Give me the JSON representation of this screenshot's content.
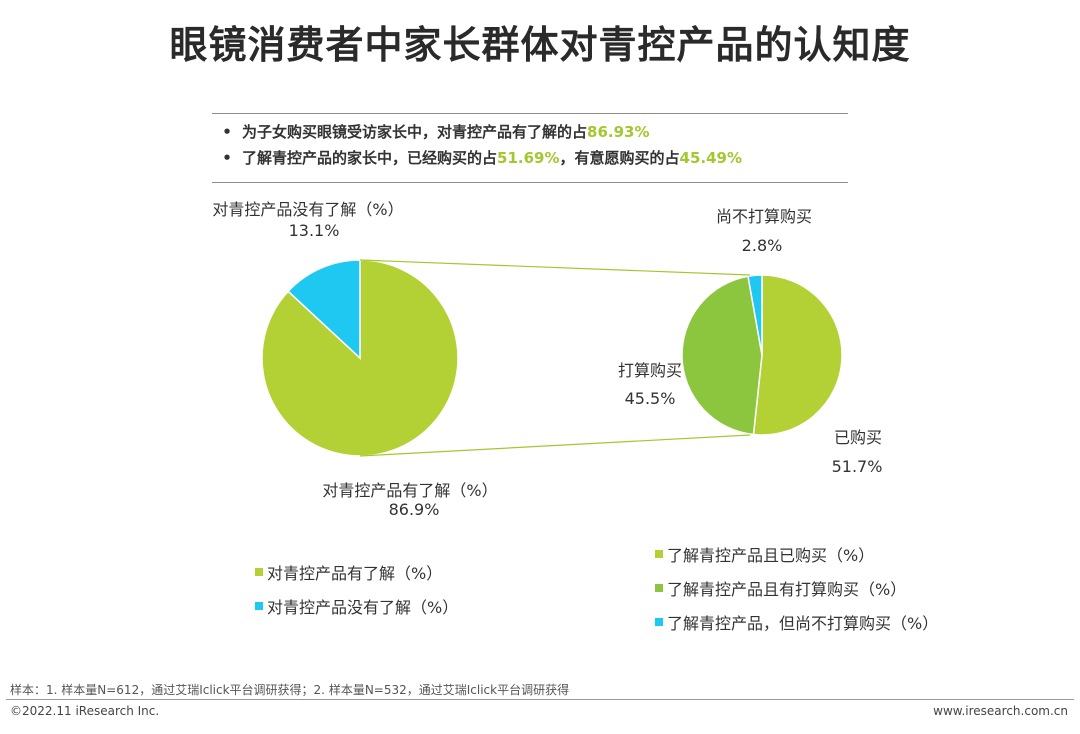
{
  "title": "眼镜消费者中家长群体对青控产品的认知度",
  "summary": {
    "line1": {
      "bullet": "•",
      "text": "为子女购买眼镜受访家长中，对青控产品有了解的占",
      "highlight": "86.93%"
    },
    "line2": {
      "bullet": "•",
      "text_a": "了解青控产品的家长中，已经购买的占",
      "highlight_a": "51.69%",
      "text_b": "，有意愿购买的占",
      "highlight_b": "45.49%"
    }
  },
  "colors": {
    "green": "#b3d135",
    "mid_green": "#8cc63f",
    "cyan": "#1ec8f0",
    "connector": "#a3c72e"
  },
  "chart_data": [
    {
      "type": "pie",
      "title": "",
      "slices": [
        {
          "name": "对青控产品有了解（%）",
          "value": 86.9,
          "label_name": "对青控产品有了解（%）",
          "label_value": "86.9%",
          "color": "#b3d135"
        },
        {
          "name": "对青控产品没有了解（%）",
          "value": 13.1,
          "label_name": "对青控产品没有了解（%）",
          "label_value": "13.1%",
          "color": "#1ec8f0"
        }
      ],
      "legend": [
        "对青控产品有了解（%）",
        "对青控产品没有了解（%）"
      ],
      "legend_position": "bottom-left"
    },
    {
      "type": "pie",
      "title": "",
      "slices": [
        {
          "name": "了解青控产品且已购买（%）",
          "value": 51.7,
          "label_name": "已购买",
          "label_value": "51.7%",
          "color": "#b3d135"
        },
        {
          "name": "了解青控产品且有打算购买（%）",
          "value": 45.5,
          "label_name": "打算购买",
          "label_value": "45.5%",
          "color": "#8cc63f"
        },
        {
          "name": "了解青控产品，但尚不打算购买（%）",
          "value": 2.8,
          "label_name": "尚不打算购买",
          "label_value": "2.8%",
          "color": "#1ec8f0"
        }
      ],
      "legend": [
        "了解青控产品且已购买（%）",
        "了解青控产品且有打算购买（%）",
        "了解青控产品，但尚不打算购买（%）"
      ],
      "legend_position": "bottom-right"
    }
  ],
  "footer": {
    "note": "样本：1. 样本量N=612，通过艾瑞Iclick平台调研获得；2. 样本量N=532，通过艾瑞Iclick平台调研获得",
    "copyright": "©2022.11 iResearch Inc.",
    "website": "www.iresearch.com.cn"
  }
}
